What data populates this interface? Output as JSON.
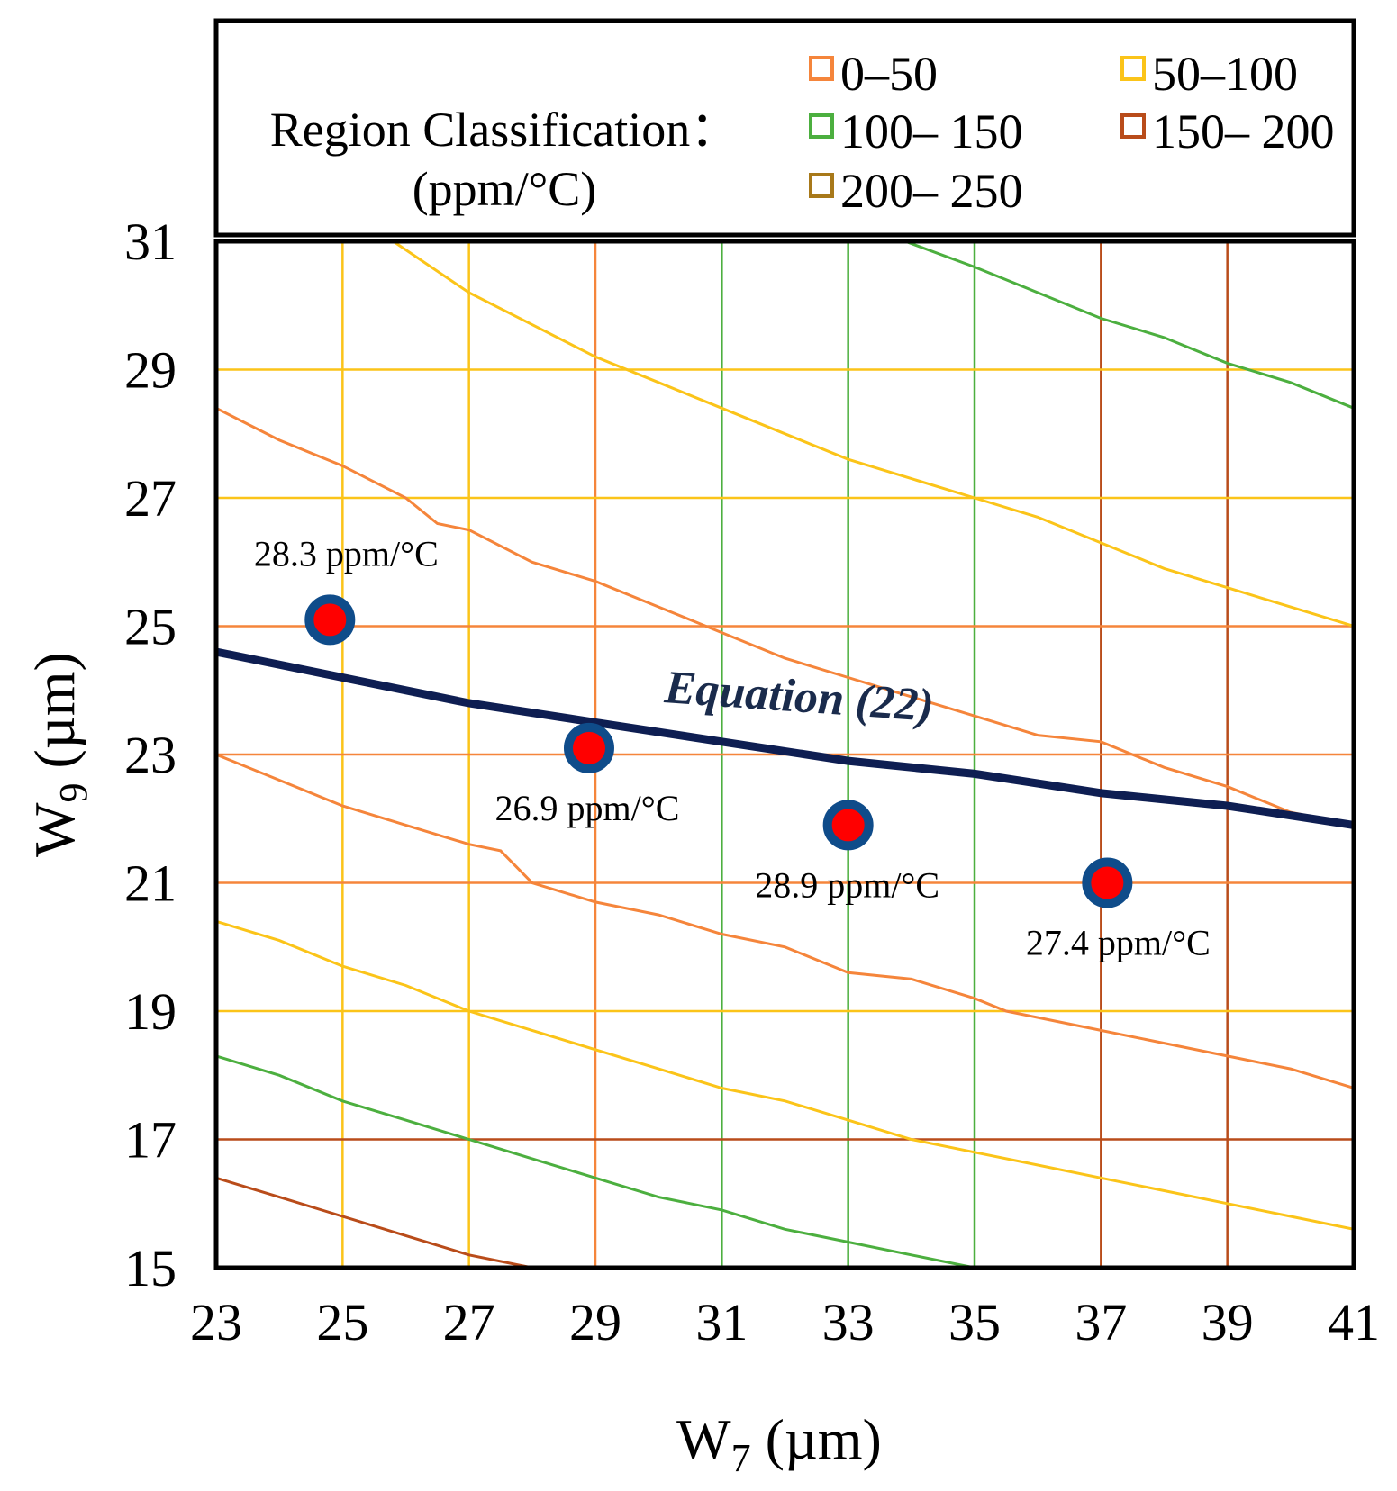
{
  "chart_data": {
    "type": "contour",
    "xlabel": "W",
    "xlabel_sub": "7",
    "xlabel_unit": " (µm)",
    "ylabel": "W",
    "ylabel_sub": "9",
    "ylabel_unit": " (µm)",
    "xlim": [
      23,
      41
    ],
    "ylim": [
      15,
      31
    ],
    "x_ticks": [
      "23",
      "25",
      "27",
      "29",
      "31",
      "33",
      "35",
      "37",
      "39",
      "41"
    ],
    "y_ticks": [
      "15",
      "17",
      "19",
      "21",
      "23",
      "25",
      "27",
      "29",
      "31"
    ],
    "legend": {
      "title_line1": "Region Classification：",
      "title_line2": "(ppm/°C)",
      "entries": [
        {
          "label": "0–50",
          "color": "#f5853b"
        },
        {
          "label": "50–100",
          "color": "#fbc419"
        },
        {
          "label": "100– 150",
          "color": "#4caf3f"
        },
        {
          "label": "150– 200",
          "color": "#b94c1a"
        },
        {
          "label": "200– 250",
          "color": "#a8791a"
        }
      ]
    },
    "region_boundaries": [
      {
        "name": "0-50 upper",
        "color": "#f5853b",
        "points": [
          [
            23,
            28.4
          ],
          [
            24,
            27.9
          ],
          [
            25,
            27.5
          ],
          [
            26,
            27.0
          ],
          [
            26.5,
            26.6
          ],
          [
            27,
            26.5
          ],
          [
            28,
            26.0
          ],
          [
            29,
            25.7
          ],
          [
            30,
            25.3
          ],
          [
            31,
            24.9
          ],
          [
            32,
            24.5
          ],
          [
            33,
            24.2
          ],
          [
            34,
            23.9
          ],
          [
            35,
            23.6
          ],
          [
            36,
            23.3
          ],
          [
            37,
            23.2
          ],
          [
            38,
            22.8
          ],
          [
            39,
            22.5
          ],
          [
            40,
            22.1
          ],
          [
            41,
            21.9
          ]
        ]
      },
      {
        "name": "0-50 lower",
        "color": "#f5853b",
        "points": [
          [
            23,
            23.0
          ],
          [
            24,
            22.6
          ],
          [
            25,
            22.2
          ],
          [
            26,
            21.9
          ],
          [
            27,
            21.6
          ],
          [
            27.5,
            21.5
          ],
          [
            28,
            21.0
          ],
          [
            29,
            20.7
          ],
          [
            30,
            20.5
          ],
          [
            31,
            20.2
          ],
          [
            32,
            20.0
          ],
          [
            33,
            19.6
          ],
          [
            34,
            19.5
          ],
          [
            35,
            19.2
          ],
          [
            35.5,
            19.0
          ],
          [
            36,
            18.9
          ],
          [
            37,
            18.7
          ],
          [
            38,
            18.5
          ],
          [
            39,
            18.3
          ],
          [
            40,
            18.1
          ],
          [
            41,
            17.8
          ]
        ]
      },
      {
        "name": "50-100 upper",
        "color": "#fbc419",
        "points": [
          [
            25.8,
            31
          ],
          [
            27,
            30.2
          ],
          [
            28,
            29.7
          ],
          [
            29,
            29.2
          ],
          [
            30,
            28.8
          ],
          [
            31,
            28.4
          ],
          [
            32,
            28.0
          ],
          [
            33,
            27.6
          ],
          [
            34,
            27.3
          ],
          [
            35,
            27.0
          ],
          [
            36,
            26.7
          ],
          [
            37,
            26.3
          ],
          [
            38,
            25.9
          ],
          [
            39,
            25.6
          ],
          [
            40,
            25.3
          ],
          [
            41,
            25.0
          ]
        ]
      },
      {
        "name": "50-100 lower",
        "color": "#fbc419",
        "points": [
          [
            23,
            20.4
          ],
          [
            24,
            20.1
          ],
          [
            25,
            19.7
          ],
          [
            26,
            19.4
          ],
          [
            27,
            19.0
          ],
          [
            28,
            18.7
          ],
          [
            29,
            18.4
          ],
          [
            30,
            18.1
          ],
          [
            31,
            17.8
          ],
          [
            32,
            17.6
          ],
          [
            33,
            17.3
          ],
          [
            34,
            17.0
          ],
          [
            35,
            16.8
          ],
          [
            36,
            16.6
          ],
          [
            37,
            16.4
          ],
          [
            38,
            16.2
          ],
          [
            39,
            16.0
          ],
          [
            40,
            15.8
          ],
          [
            41,
            15.6
          ]
        ]
      },
      {
        "name": "100-150 upper",
        "color": "#4caf3f",
        "points": [
          [
            33.9,
            31
          ],
          [
            35,
            30.6
          ],
          [
            36,
            30.2
          ],
          [
            37,
            29.8
          ],
          [
            38,
            29.5
          ],
          [
            39,
            29.1
          ],
          [
            40,
            28.8
          ],
          [
            41,
            28.4
          ]
        ]
      },
      {
        "name": "100-150 lower",
        "color": "#4caf3f",
        "points": [
          [
            23,
            18.3
          ],
          [
            24,
            18.0
          ],
          [
            25,
            17.6
          ],
          [
            26,
            17.3
          ],
          [
            27,
            17.0
          ],
          [
            28,
            16.7
          ],
          [
            29,
            16.4
          ],
          [
            30,
            16.1
          ],
          [
            31,
            15.9
          ],
          [
            32,
            15.6
          ],
          [
            33,
            15.4
          ],
          [
            34,
            15.2
          ],
          [
            35,
            15.0
          ],
          [
            35.5,
            14.9
          ]
        ]
      },
      {
        "name": "150-200 lower",
        "color": "#b94c1a",
        "points": [
          [
            23,
            16.4
          ],
          [
            24,
            16.1
          ],
          [
            25,
            15.8
          ],
          [
            26,
            15.5
          ],
          [
            27,
            15.2
          ],
          [
            28,
            15.0
          ]
        ]
      }
    ],
    "curve": {
      "label": "Equation (22)",
      "color": "#0e1e52",
      "points": [
        [
          23,
          24.6
        ],
        [
          25,
          24.2
        ],
        [
          27,
          23.8
        ],
        [
          29,
          23.5
        ],
        [
          31,
          23.2
        ],
        [
          33,
          22.9
        ],
        [
          35,
          22.7
        ],
        [
          37,
          22.4
        ],
        [
          39,
          22.2
        ],
        [
          41,
          21.9
        ]
      ]
    },
    "points": [
      {
        "x": 24.8,
        "y": 25.1,
        "label": "28.3 ppm/°C"
      },
      {
        "x": 28.9,
        "y": 23.1,
        "label": "26.9 ppm/°C"
      },
      {
        "x": 33.0,
        "y": 21.9,
        "label": "28.9 ppm/°C"
      },
      {
        "x": 37.1,
        "y": 21.0,
        "label": "27.4 ppm/°C"
      }
    ]
  }
}
